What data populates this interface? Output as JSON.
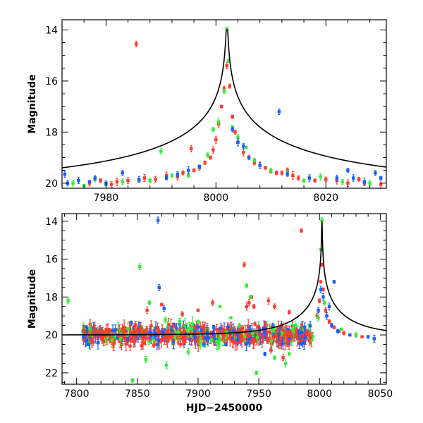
{
  "chart_data": [
    {
      "type": "scatter",
      "title": "",
      "xlabel": "",
      "ylabel": "Magnitude",
      "xlim": [
        7972,
        8031
      ],
      "ylim": [
        20.2,
        13.6
      ],
      "y_inverted": true,
      "x_ticks": [
        7980,
        8000,
        8020
      ],
      "y_ticks": [
        14,
        16,
        18,
        20
      ],
      "grid": false,
      "legend": "none",
      "colors": {
        "red": "#ff3b2f",
        "green": "#33ee33",
        "blue": "#1560ff",
        "model": "#000000"
      },
      "model": {
        "t0": 8002.0,
        "base": 20.0,
        "amp": 6.0,
        "u0": 0.0025,
        "tE": 45.0
      },
      "series": [
        {
          "color": "red",
          "points": [
            [
              7977,
              20.0
            ],
            [
              7979,
              19.9
            ],
            [
              7981,
              20.05
            ],
            [
              7982,
              19.95
            ],
            [
              7984,
              19.9
            ],
            [
              7985.5,
              14.55
            ],
            [
              7986,
              19.9
            ],
            [
              7987,
              19.8
            ],
            [
              7989,
              19.85
            ],
            [
              7991,
              19.7
            ],
            [
              7993,
              19.75
            ],
            [
              7994,
              19.6
            ],
            [
              7995.5,
              18.65
            ],
            [
              7996,
              19.5
            ],
            [
              7997,
              19.4
            ],
            [
              7998,
              19.2
            ],
            [
              7999,
              19.0
            ],
            [
              7999.5,
              18.7
            ],
            [
              8000,
              18.3
            ],
            [
              8000.5,
              17.7
            ],
            [
              8001,
              17.0
            ],
            [
              8001.5,
              16.3
            ],
            [
              8002,
              15.4
            ],
            [
              8002.5,
              16.2
            ],
            [
              8003,
              17.4
            ],
            [
              8003.5,
              18.0
            ],
            [
              8004,
              18.4
            ],
            [
              8005,
              18.8
            ],
            [
              8006,
              19.0
            ],
            [
              8007,
              19.2
            ],
            [
              8008,
              19.3
            ],
            [
              8009,
              19.4
            ],
            [
              8010,
              19.55
            ],
            [
              8011,
              19.6
            ],
            [
              8012,
              19.6
            ],
            [
              8013,
              19.5
            ],
            [
              8014,
              19.7
            ],
            [
              8015,
              19.8
            ],
            [
              8017,
              19.8
            ],
            [
              8018,
              19.9
            ],
            [
              8020,
              19.85
            ],
            [
              8022,
              19.9
            ],
            [
              8024,
              20.0
            ],
            [
              8026,
              19.85
            ],
            [
              8027,
              20.0
            ],
            [
              8030,
              20.05
            ]
          ]
        },
        {
          "color": "green",
          "points": [
            [
              7974,
              20.0
            ],
            [
              7976,
              20.1
            ],
            [
              7978,
              19.85
            ],
            [
              7980,
              20.05
            ],
            [
              7983,
              19.95
            ],
            [
              7988,
              19.9
            ],
            [
              7990,
              18.75
            ],
            [
              7992,
              19.7
            ],
            [
              7995,
              19.7
            ],
            [
              7998.5,
              18.9
            ],
            [
              7999.5,
              17.9
            ],
            [
              8000.5,
              17.6
            ],
            [
              8001.5,
              16.4
            ],
            [
              8002,
              13.95
            ],
            [
              8002.3,
              15.2
            ],
            [
              8003,
              17.8
            ],
            [
              8004,
              18.2
            ],
            [
              8005.5,
              18.6
            ],
            [
              8007,
              19.1
            ],
            [
              8010,
              19.5
            ],
            [
              8013,
              19.6
            ],
            [
              8016,
              19.9
            ],
            [
              8019,
              19.75
            ],
            [
              8023,
              19.95
            ],
            [
              8028,
              20.0
            ]
          ]
        },
        {
          "color": "blue",
          "points": [
            [
              7972.5,
              19.65
            ],
            [
              7973,
              20.0
            ],
            [
              7975,
              19.9
            ],
            [
              7977,
              19.95
            ],
            [
              7978,
              19.8
            ],
            [
              7980,
              20.0
            ],
            [
              7983,
              19.6
            ],
            [
              7986,
              19.85
            ],
            [
              7991,
              19.8
            ],
            [
              7993,
              19.65
            ],
            [
              7995,
              19.5
            ],
            [
              7997,
              19.35
            ],
            [
              8003,
              17.9
            ],
            [
              8004,
              18.4
            ],
            [
              8005,
              18.55
            ],
            [
              8006,
              19.0
            ],
            [
              8008,
              19.3
            ],
            [
              8011.5,
              17.2
            ],
            [
              8013,
              19.65
            ],
            [
              8017,
              19.8
            ],
            [
              8022,
              19.8
            ],
            [
              8024,
              19.5
            ],
            [
              8025,
              19.8
            ],
            [
              8027,
              19.95
            ],
            [
              8029,
              19.6
            ],
            [
              8030,
              19.8
            ]
          ]
        }
      ]
    },
    {
      "type": "scatter",
      "title": "",
      "xlabel": "HJD−2450000",
      "ylabel": "Magnitude",
      "xlim": [
        7788,
        8055
      ],
      "ylim": [
        22.6,
        13.6
      ],
      "y_inverted": true,
      "x_ticks": [
        7800,
        7850,
        7900,
        7950,
        8000,
        8050
      ],
      "y_ticks": [
        14,
        16,
        18,
        20,
        22
      ],
      "grid": false,
      "legend": "none",
      "colors": {
        "red": "#ff3b2f",
        "green": "#33ee33",
        "blue": "#1560ff",
        "model": "#000000"
      },
      "model": {
        "t0": 8002.0,
        "base": 20.0,
        "amp": 6.0,
        "u0": 0.0025,
        "tE": 45.0
      },
      "baseline_range": [
        7805,
        7995
      ],
      "outliers": {
        "red": [
          [
            7858,
            18.7
          ],
          [
            7870,
            18.4
          ],
          [
            7887,
            18.9
          ],
          [
            7900,
            18.7
          ],
          [
            7912,
            18.3
          ],
          [
            7938,
            16.3
          ],
          [
            7940,
            18.5
          ],
          [
            7942,
            18.3
          ],
          [
            7944,
            18.0
          ],
          [
            7946,
            18.5
          ],
          [
            7958,
            18.2
          ],
          [
            7963,
            18.5
          ],
          [
            7975,
            18.8
          ],
          [
            7985,
            14.5
          ],
          [
            7970,
            21.2
          ],
          [
            7960,
            20.8
          ]
        ],
        "green": [
          [
            7793,
            18.2
          ],
          [
            7852,
            16.4
          ],
          [
            7860,
            18.3
          ],
          [
            7873,
            19.2
          ],
          [
            7885,
            19.3
          ],
          [
            7892,
            20.9
          ],
          [
            7900,
            19.3
          ],
          [
            7918,
            18.5
          ],
          [
            7927,
            19.1
          ],
          [
            7934,
            19.5
          ],
          [
            7940,
            17.4
          ],
          [
            7943,
            18.0
          ],
          [
            7945,
            19.9
          ],
          [
            7948,
            22.0
          ],
          [
            7963,
            21.2
          ],
          [
            7972,
            21.5
          ],
          [
            7975,
            21.0
          ],
          [
            7980,
            19.5
          ],
          [
            7846,
            22.4
          ],
          [
            7874,
            21.6
          ],
          [
            7857,
            21.3
          ],
          [
            8002,
            13.95
          ],
          [
            8001,
            15.5
          ]
        ],
        "blue": [
          [
            7867,
            13.95
          ],
          [
            7868,
            17.5
          ],
          [
            7872,
            18.6
          ],
          [
            7923,
            20.5
          ],
          [
            7955,
            21.0
          ],
          [
            8008,
            18.5
          ],
          [
            8012,
            17.2
          ],
          [
            8045,
            20.2
          ]
        ]
      },
      "peak_points": {
        "red": [
          [
            7998,
            19.0
          ],
          [
            8000,
            18.2
          ],
          [
            8001,
            17.2
          ],
          [
            8002,
            16.3
          ],
          [
            8003,
            17.6
          ],
          [
            8005,
            18.7
          ],
          [
            8008,
            19.3
          ],
          [
            8012,
            19.6
          ],
          [
            8016,
            19.8
          ],
          [
            8020,
            19.9
          ],
          [
            8030,
            20.0
          ],
          [
            8035,
            20.1
          ]
        ],
        "blue": [
          [
            7999,
            18.7
          ],
          [
            8001,
            17.6
          ],
          [
            8003,
            18.0
          ],
          [
            8006,
            19.0
          ],
          [
            8010,
            19.5
          ],
          [
            8015,
            19.8
          ],
          [
            8025,
            20.0
          ],
          [
            8040,
            20.1
          ]
        ],
        "green": [
          [
            7999,
            19.1
          ],
          [
            8004,
            18.3
          ],
          [
            8018,
            19.7
          ],
          [
            8030,
            20.0
          ]
        ]
      }
    }
  ]
}
